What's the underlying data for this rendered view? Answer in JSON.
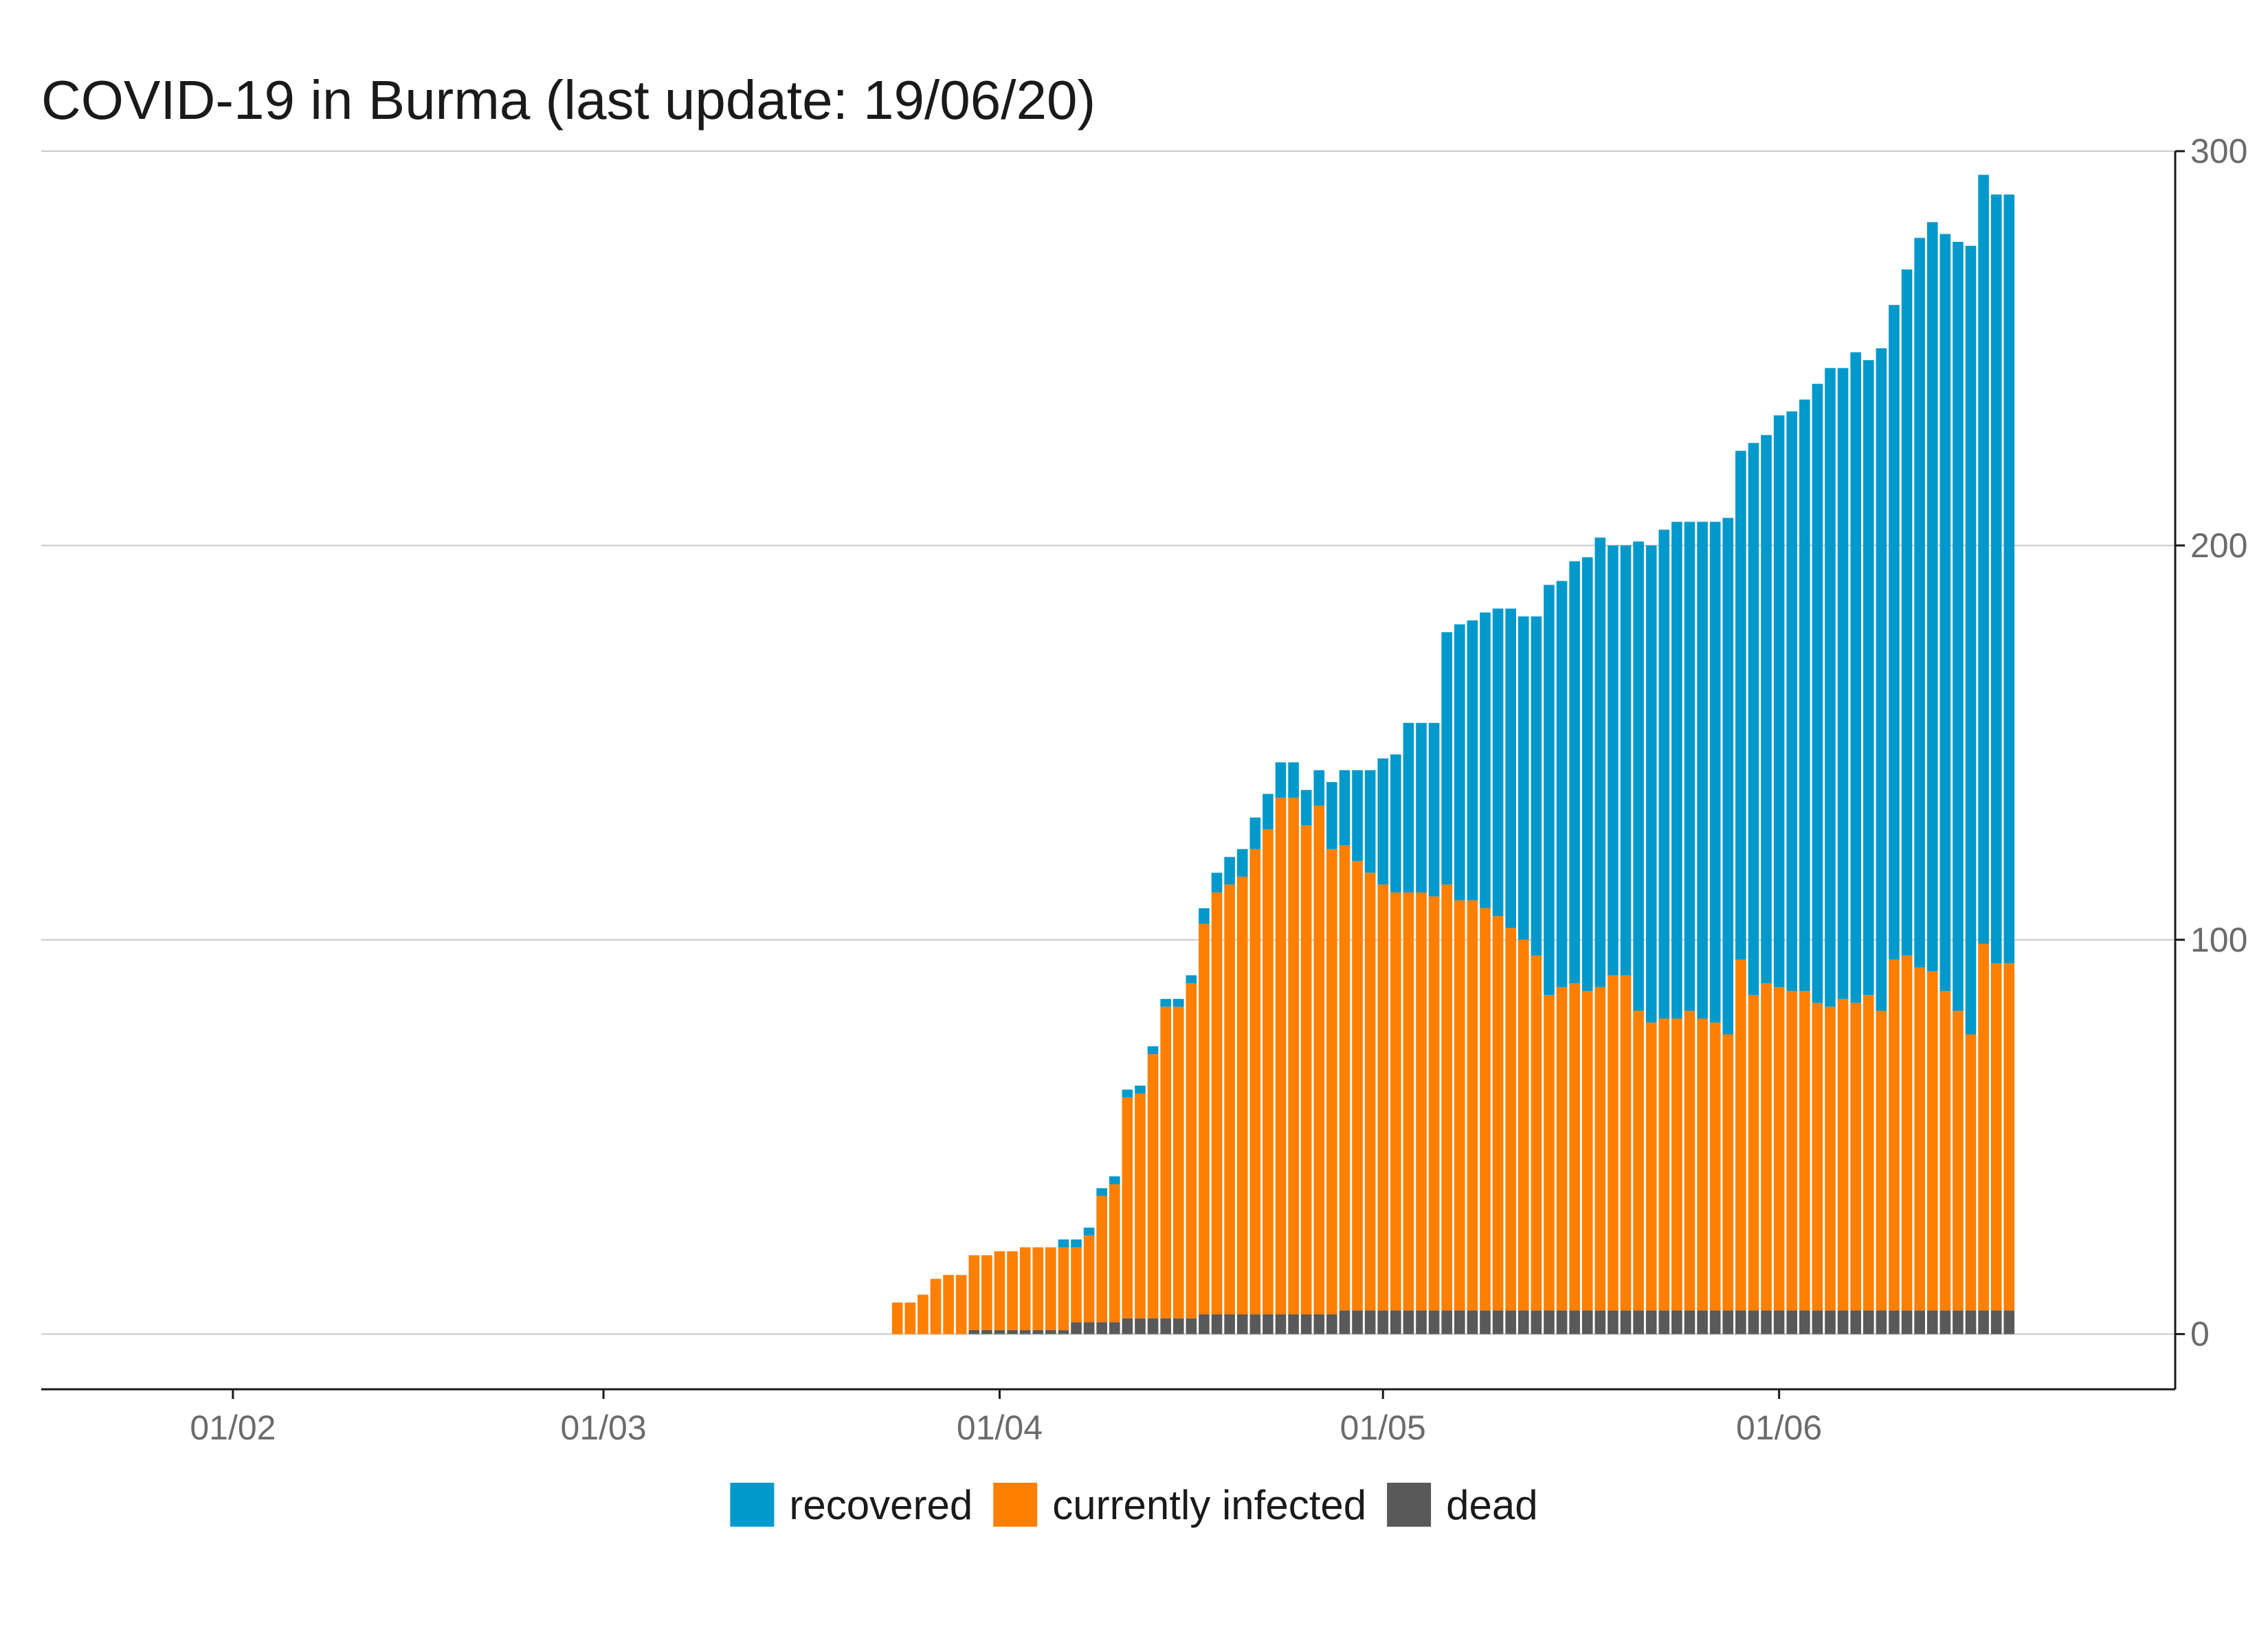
{
  "chart_data": {
    "type": "bar",
    "stacked": true,
    "title": "COVID-19 in Burma (last update: 19/06/20)",
    "xlabel": "",
    "ylabel": "",
    "ylim": [
      -14,
      300
    ],
    "y_ticks": [
      0,
      100,
      200,
      300
    ],
    "y_axis_side": "right",
    "grid": true,
    "legend_position": "bottom",
    "x_ticks": [
      {
        "date": "2020-02-01",
        "label": "01/02"
      },
      {
        "date": "2020-03-01",
        "label": "01/03"
      },
      {
        "date": "2020-04-01",
        "label": "01/04"
      },
      {
        "date": "2020-05-01",
        "label": "01/05"
      },
      {
        "date": "2020-06-01",
        "label": "01/06"
      }
    ],
    "x_range": [
      "2020-01-17",
      "2020-07-02"
    ],
    "first_date": "2020-03-24",
    "series": [
      {
        "name": "dead",
        "color": "#595959",
        "values": [
          0,
          0,
          0,
          0,
          0,
          0,
          1,
          1,
          1,
          1,
          1,
          1,
          1,
          1,
          3,
          3,
          3,
          3,
          4,
          4,
          4,
          4,
          4,
          4,
          5,
          5,
          5,
          5,
          5,
          5,
          5,
          5,
          5,
          5,
          5,
          6,
          6,
          6,
          6,
          6,
          6,
          6,
          6,
          6,
          6,
          6,
          6,
          6,
          6,
          6,
          6,
          6,
          6,
          6,
          6,
          6,
          6,
          6,
          6,
          6,
          6,
          6,
          6,
          6,
          6,
          6,
          6,
          6,
          6,
          6,
          6,
          6,
          6,
          6,
          6,
          6,
          6,
          6,
          6,
          6,
          6,
          6,
          6,
          6,
          6,
          6,
          6,
          6
        ]
      },
      {
        "name": "currently infected",
        "color": "#ff7f00",
        "values": [
          8,
          8,
          10,
          14,
          15,
          15,
          19,
          19,
          20,
          20,
          21,
          21,
          21,
          21,
          19,
          22,
          32,
          35,
          56,
          57,
          67,
          79,
          79,
          85,
          99,
          107,
          109,
          111,
          118,
          123,
          131,
          131,
          124,
          129,
          118,
          118,
          114,
          111,
          108,
          106,
          106,
          106,
          105,
          108,
          104,
          104,
          102,
          100,
          97,
          94,
          90,
          80,
          82,
          83,
          81,
          82,
          85,
          85,
          76,
          73,
          74,
          74,
          76,
          74,
          73,
          70,
          89,
          80,
          83,
          82,
          81,
          81,
          78,
          77,
          79,
          78,
          80,
          76,
          89,
          90,
          87,
          86,
          81,
          76,
          70,
          93,
          88,
          88
        ]
      },
      {
        "name": "recovered",
        "color": "#0099cc",
        "values": [
          0,
          0,
          0,
          0,
          0,
          0,
          0,
          0,
          0,
          0,
          0,
          0,
          0,
          2,
          2,
          2,
          2,
          2,
          2,
          2,
          2,
          2,
          2,
          2,
          4,
          5,
          7,
          7,
          8,
          9,
          9,
          9,
          9,
          9,
          17,
          19,
          23,
          26,
          32,
          35,
          43,
          43,
          44,
          64,
          70,
          71,
          75,
          78,
          81,
          82,
          86,
          104,
          103,
          107,
          110,
          114,
          109,
          109,
          119,
          121,
          124,
          126,
          124,
          126,
          127,
          131,
          129,
          140,
          139,
          145,
          147,
          150,
          157,
          162,
          160,
          165,
          161,
          168,
          166,
          174,
          185,
          190,
          192,
          195,
          200,
          195,
          195,
          195
        ]
      }
    ]
  },
  "legend": [
    {
      "label": "recovered",
      "color": "#0099cc"
    },
    {
      "label": "currently infected",
      "color": "#ff7f00"
    },
    {
      "label": "dead",
      "color": "#595959"
    }
  ]
}
